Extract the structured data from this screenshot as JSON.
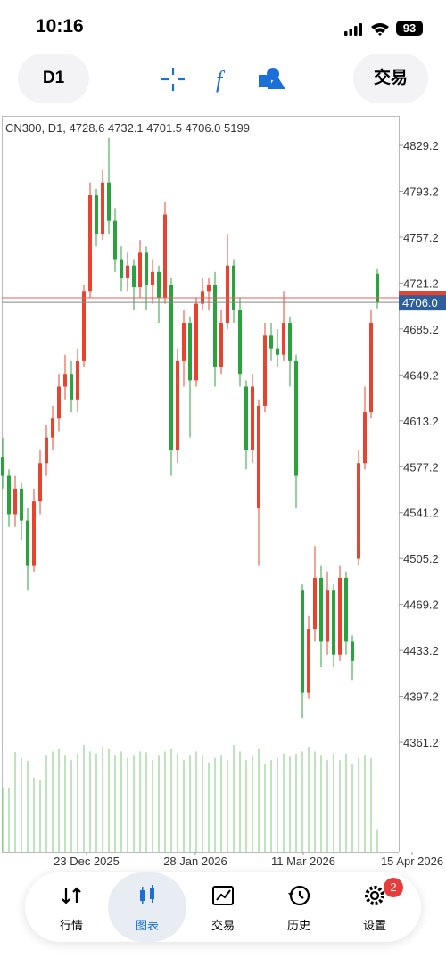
{
  "status_bar": {
    "time": "10:16",
    "battery": "93"
  },
  "toolbar": {
    "timeframe": "D1",
    "trade_button": "交易"
  },
  "chart_data": {
    "type": "candlestick",
    "header": "CN300, D1, 4728.6 4732.1 4701.5 4706.0 5199",
    "candles": [
      [
        4585,
        4600,
        4560,
        4570
      ],
      [
        4570,
        4575,
        4530,
        4540
      ],
      [
        4540,
        4570,
        4530,
        4560
      ],
      [
        4560,
        4565,
        4520,
        4535
      ],
      [
        4535,
        4545,
        4480,
        4500
      ],
      [
        4500,
        4560,
        4495,
        4550
      ],
      [
        4550,
        4590,
        4540,
        4580
      ],
      [
        4580,
        4610,
        4570,
        4600
      ],
      [
        4600,
        4625,
        4590,
        4615
      ],
      [
        4615,
        4650,
        4605,
        4640
      ],
      [
        4640,
        4665,
        4630,
        4650
      ],
      [
        4650,
        4660,
        4620,
        4630
      ],
      [
        4630,
        4670,
        4620,
        4660
      ],
      [
        4660,
        4720,
        4655,
        4715
      ],
      [
        4715,
        4800,
        4710,
        4790
      ],
      [
        4790,
        4795,
        4750,
        4760
      ],
      [
        4760,
        4810,
        4755,
        4800
      ],
      [
        4800,
        4835,
        4760,
        4770
      ],
      [
        4770,
        4780,
        4730,
        4740
      ],
      [
        4740,
        4750,
        4715,
        4725
      ],
      [
        4725,
        4745,
        4715,
        4735
      ],
      [
        4735,
        4740,
        4700,
        4718
      ],
      [
        4718,
        4755,
        4710,
        4745
      ],
      [
        4745,
        4750,
        4700,
        4720
      ],
      [
        4720,
        4740,
        4705,
        4730
      ],
      [
        4730,
        4735,
        4690,
        4710
      ],
      [
        4710,
        4785,
        4705,
        4775
      ],
      [
        4720,
        4725,
        4570,
        4590
      ],
      [
        4590,
        4670,
        4580,
        4660
      ],
      [
        4660,
        4700,
        4640,
        4690
      ],
      [
        4690,
        4695,
        4600,
        4645
      ],
      [
        4645,
        4710,
        4640,
        4705
      ],
      [
        4705,
        4725,
        4700,
        4715
      ],
      [
        4715,
        4725,
        4700,
        4720
      ],
      [
        4720,
        4730,
        4640,
        4655
      ],
      [
        4655,
        4700,
        4650,
        4690
      ],
      [
        4690,
        4760,
        4685,
        4735
      ],
      [
        4735,
        4740,
        4690,
        4700
      ],
      [
        4700,
        4710,
        4640,
        4650
      ],
      [
        4640,
        4645,
        4575,
        4590
      ],
      [
        4590,
        4650,
        4580,
        4640
      ],
      [
        4545,
        4630,
        4500,
        4625
      ],
      [
        4625,
        4690,
        4620,
        4680
      ],
      [
        4680,
        4690,
        4660,
        4670
      ],
      [
        4670,
        4685,
        4655,
        4665
      ],
      [
        4665,
        4715,
        4660,
        4690
      ],
      [
        4690,
        4695,
        4640,
        4660
      ],
      [
        4660,
        4665,
        4545,
        4570
      ],
      [
        4480,
        4485,
        4380,
        4400
      ],
      [
        4400,
        4460,
        4395,
        4450
      ],
      [
        4450,
        4515,
        4440,
        4490
      ],
      [
        4490,
        4500,
        4420,
        4440
      ],
      [
        4440,
        4495,
        4430,
        4480
      ],
      [
        4480,
        4485,
        4420,
        4430
      ],
      [
        4430,
        4500,
        4425,
        4490
      ],
      [
        4490,
        4495,
        4430,
        4440
      ],
      [
        4440,
        4445,
        4410,
        4425
      ],
      [
        4505,
        4590,
        4500,
        4580
      ],
      [
        4580,
        4640,
        4575,
        4620
      ],
      [
        4620,
        4700,
        4615,
        4690
      ],
      [
        4728.6,
        4732.1,
        4701.5,
        4706.0
      ]
    ],
    "volumes": [
      14800,
      14500,
      22900,
      21500,
      20800,
      17000,
      16500,
      22000,
      23000,
      23500,
      22000,
      21000,
      22500,
      24500,
      23000,
      22500,
      24000,
      23500,
      22000,
      23000,
      21500,
      22000,
      23000,
      22800,
      21000,
      22000,
      23000,
      23500,
      22500,
      21000,
      22000,
      23000,
      22000,
      20500,
      21500,
      22000,
      21000,
      24500,
      23000,
      21000,
      22000,
      23500,
      20000,
      21000,
      21500,
      22500,
      21800,
      22500,
      23000,
      24000,
      23000,
      22000,
      21000,
      22500,
      21000,
      22500,
      20000,
      21500,
      22000,
      21500,
      5199
    ],
    "ylim": [
      4275.2,
      4852.3
    ],
    "yticks": [
      4829.2,
      4793.2,
      4757.2,
      4721.2,
      4685.2,
      4649.2,
      4613.2,
      4577.2,
      4541.2,
      4505.2,
      4469.2,
      4433.2,
      4397.2,
      4361.2
    ],
    "last_price": {
      "value": 4706.0,
      "label": "4706.0"
    },
    "ask_price": 4709.6,
    "xtick_labels": [
      "23 Dec 2025",
      "28 Jan 2026",
      "11 Mar 2026",
      "15 Apr 2026"
    ],
    "colors": {
      "up": "#e8432f",
      "down": "#2aa33c",
      "volume": "#7cc87a"
    }
  },
  "nav": {
    "items": [
      "行情",
      "图表",
      "交易",
      "历史",
      "设置"
    ],
    "active": 1,
    "badge": "2"
  }
}
